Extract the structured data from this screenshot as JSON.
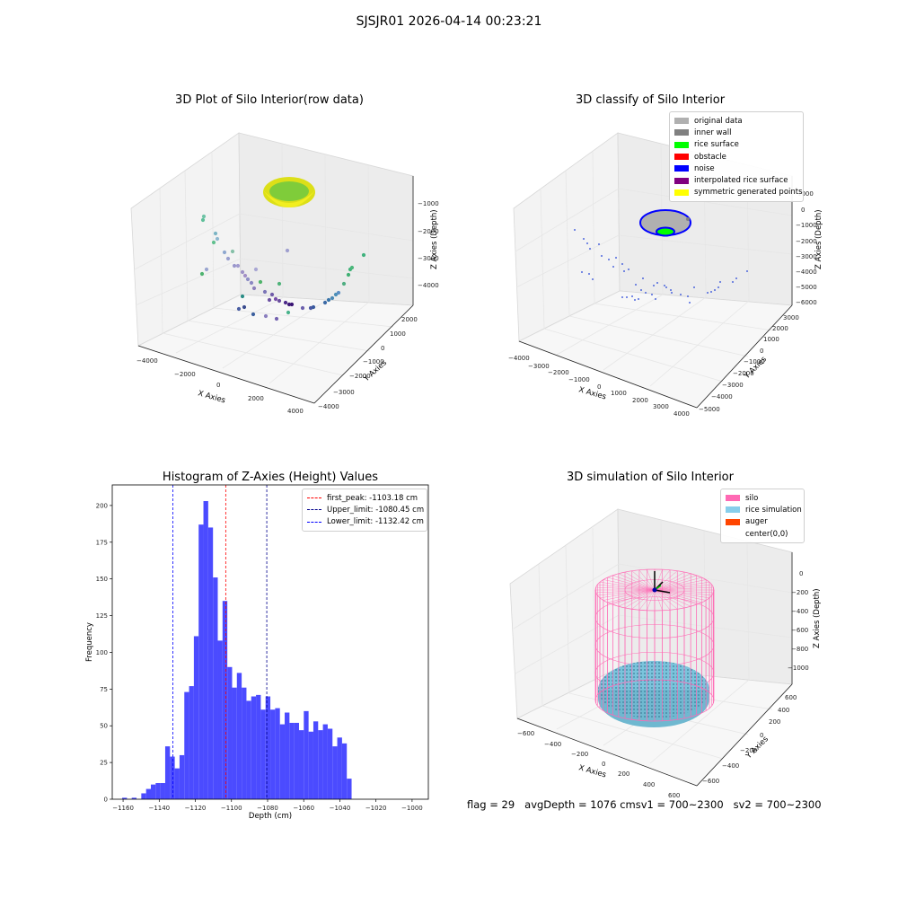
{
  "figure": {
    "suptitle": "SJSJR01 2026-04-14 00:23:21",
    "footer": {
      "flag": "flag = 29",
      "avg": "avgDepth = 1076 cm",
      "sv1": "sv1 = 700~2300",
      "sv2": "sv2 = 700~2300"
    }
  },
  "chart_data": [
    {
      "type": "scatter3d",
      "title": "3D Plot of Silo Interior(row data)",
      "xlabel": "X Axies",
      "ylabel": "Y Axies",
      "zlabel": "Z Axies (Depth)",
      "x_ticks": [
        "−4000",
        "−2000",
        "0",
        "2000",
        "4000"
      ],
      "y_ticks": [
        "−4000",
        "−3000",
        "−2000",
        "−1000",
        "0",
        "1000",
        "2000"
      ],
      "z_ticks": [
        "−1000",
        "−2000",
        "−3000",
        "−4000"
      ],
      "colors": {
        "surface": "#e2e41c",
        "surface_core": "#78cc3a"
      }
    },
    {
      "type": "scatter3d",
      "title": "3D classify of Silo Interior",
      "xlabel": "X Axies",
      "ylabel": "Y Axies",
      "zlabel": "Z Axies (Depth)",
      "x_ticks": [
        "−4000",
        "−3000",
        "−2000",
        "−1000",
        "0",
        "1000",
        "2000",
        "3000",
        "4000"
      ],
      "y_ticks": [
        "−5000",
        "−4000",
        "−3000",
        "−2000",
        "−1000",
        "0",
        "1000",
        "2000",
        "3000"
      ],
      "z_ticks": [
        "1000",
        "0",
        "−1000",
        "−2000",
        "−3000",
        "−4000",
        "−5000",
        "−6000"
      ],
      "legend": [
        {
          "label": "original data",
          "color": "#b0b0b0"
        },
        {
          "label": "inner wall",
          "color": "#808080"
        },
        {
          "label": "rice surface",
          "color": "#00ff00"
        },
        {
          "label": "obstacle",
          "color": "#ff0000"
        },
        {
          "label": "noise",
          "color": "#0000ff"
        },
        {
          "label": "interpolated rice surface",
          "color": "#800080"
        },
        {
          "label": "symmetric generated points",
          "color": "#ffff00"
        }
      ]
    },
    {
      "type": "bar",
      "title": "Histogram of Z-Axies (Height) Values",
      "xlabel": "Depth (cm)",
      "ylabel": "Frequency",
      "xlim": [
        -1166,
        -991
      ],
      "ylim": [
        0,
        214
      ],
      "x_ticks": [
        -1160,
        -1140,
        -1120,
        -1100,
        -1080,
        -1060,
        -1040,
        -1020,
        -1000
      ],
      "y_ticks": [
        0,
        25,
        50,
        75,
        100,
        125,
        150,
        175,
        200
      ],
      "bar_color": "#4b4bff",
      "bin_edges_start": -1160.5,
      "bin_width": 2.646,
      "values": [
        1,
        0,
        1,
        0,
        4,
        7,
        10,
        11,
        11,
        36,
        29,
        21,
        30,
        73,
        77,
        111,
        187,
        203,
        185,
        151,
        108,
        135,
        90,
        76,
        86,
        76,
        67,
        70,
        71,
        61,
        70,
        61,
        62,
        51,
        59,
        52,
        52,
        47,
        60,
        46,
        53,
        47,
        51,
        48,
        36,
        42,
        38,
        14
      ],
      "lines": [
        {
          "label": "first_peak: -1103.18 cm",
          "value": -1103.18,
          "color": "#ff0000"
        },
        {
          "label": "Upper_limit: -1080.45 cm",
          "value": -1080.45,
          "color": "#00008b"
        },
        {
          "label": "Lower_limit: -1132.42 cm",
          "value": -1132.42,
          "color": "#0000ff"
        }
      ]
    },
    {
      "type": "scatter3d",
      "title": "3D simulation of Silo Interior",
      "xlabel": "X Axies",
      "ylabel": "Y Axies",
      "zlabel": "Z Axies (Depth)",
      "x_ticks": [
        "−600",
        "−400",
        "−200",
        "0",
        "200",
        "400",
        "600"
      ],
      "y_ticks": [
        "−600",
        "−400",
        "−200",
        "0",
        "200",
        "400",
        "600"
      ],
      "z_ticks": [
        "0",
        "−200",
        "−400",
        "−600",
        "−800",
        "−1000"
      ],
      "legend": [
        {
          "label": "silo",
          "color": "#ff69b4"
        },
        {
          "label": "rice simulation",
          "color": "#87ceeb"
        },
        {
          "label": "auger",
          "color": "#ff4500"
        },
        {
          "label": "center(0,0)",
          "color": ""
        }
      ]
    }
  ]
}
